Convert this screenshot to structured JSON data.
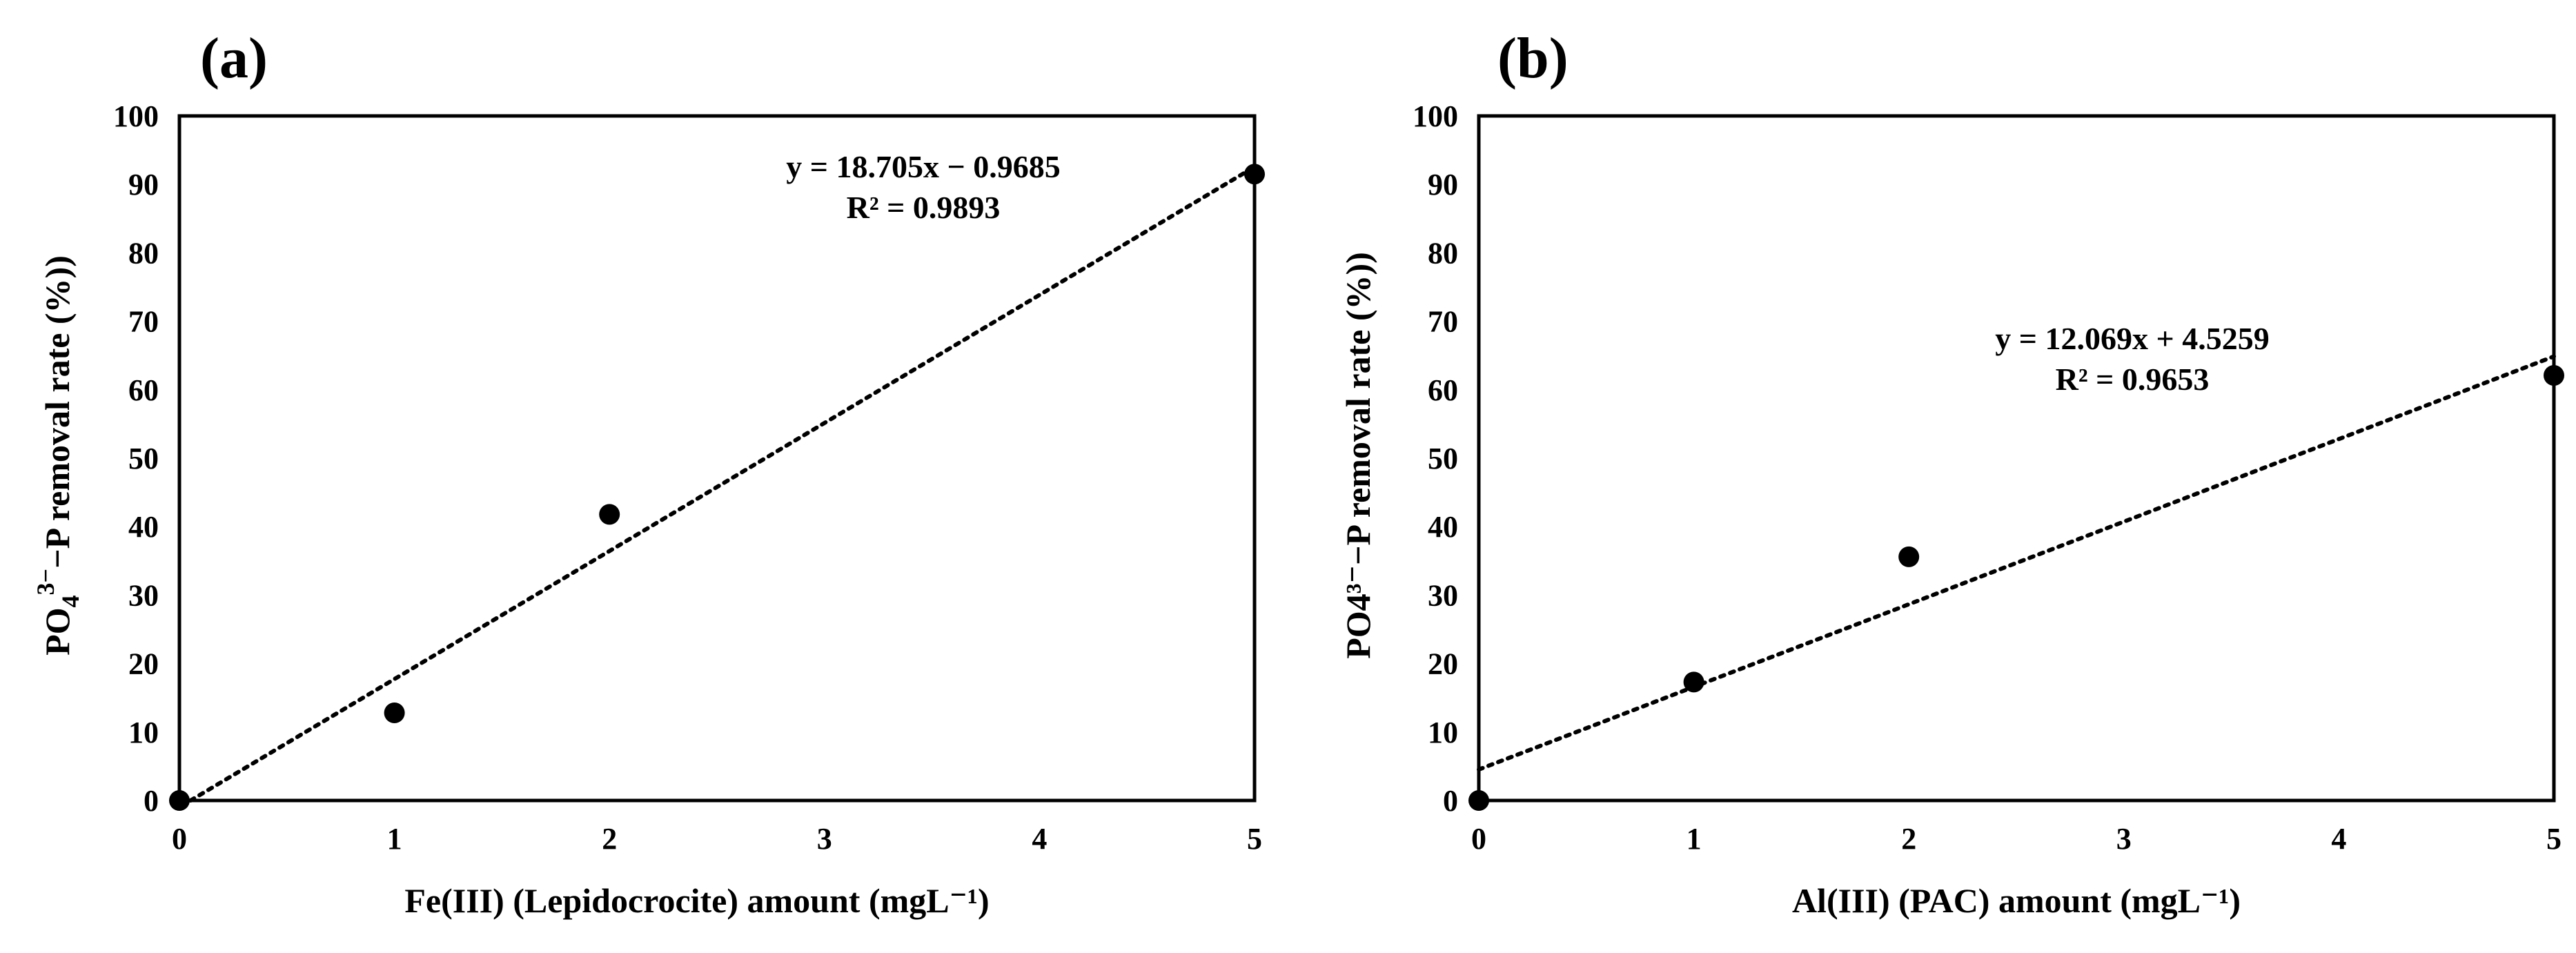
{
  "chart_data": [
    {
      "type": "scatter",
      "panel_label": "(a)",
      "title": "",
      "xlabel": "Fe(III) (Lepidocrocite) amount (mgL⁻¹)",
      "ylabel_parts": [
        "PO",
        "4",
        "3−",
        "−P removal rate (%))"
      ],
      "xlim": [
        0,
        5
      ],
      "ylim": [
        0,
        100
      ],
      "xticks": [
        "0",
        "1",
        "2",
        "3",
        "4",
        "5"
      ],
      "yticks": [
        "0",
        "10",
        "20",
        "30",
        "40",
        "50",
        "60",
        "70",
        "80",
        "90",
        "100"
      ],
      "grid": false,
      "series": [
        {
          "name": "data",
          "x": [
            0,
            1,
            2,
            5
          ],
          "y": [
            0,
            12.8,
            41.8,
            91.5
          ]
        }
      ],
      "trendline": {
        "slope": 18.705,
        "intercept": -0.9685,
        "style": "dotted",
        "x_range": [
          0,
          5
        ]
      },
      "equation": "y = 18.705x − 0.9685",
      "r2": "R² = 0.9893"
    },
    {
      "type": "scatter",
      "panel_label": "(b)",
      "title": "",
      "xlabel": "Al(III)  (PAC) amount (mgL⁻¹)",
      "ylabel": "PO4³⁻−P removal rate (%))",
      "xlim": [
        0,
        5
      ],
      "ylim": [
        0,
        100
      ],
      "xticks": [
        "0",
        "1",
        "2",
        "3",
        "4",
        "5"
      ],
      "yticks": [
        "0",
        "10",
        "20",
        "30",
        "40",
        "50",
        "60",
        "70",
        "80",
        "90",
        "100"
      ],
      "grid": false,
      "series": [
        {
          "name": "data",
          "x": [
            0,
            1,
            2,
            5
          ],
          "y": [
            0,
            17.3,
            35.6,
            62.1
          ]
        }
      ],
      "trendline": {
        "slope": 12.069,
        "intercept": 4.5259,
        "style": "dotted",
        "x_range": [
          0,
          5
        ]
      },
      "equation": "y = 12.069x + 4.5259",
      "r2": "R² = 0.9653"
    }
  ]
}
